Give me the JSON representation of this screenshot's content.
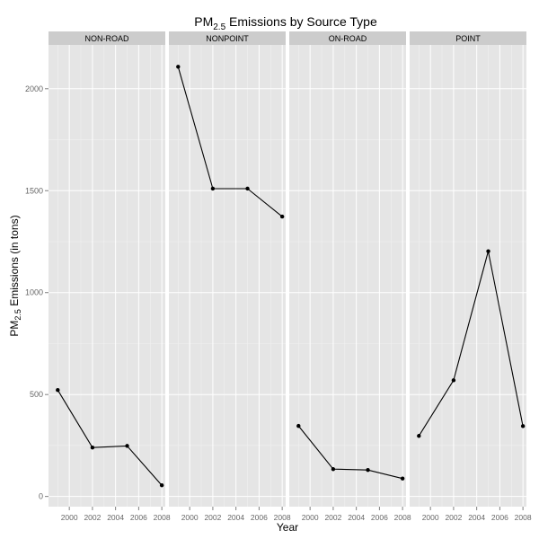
{
  "chart_data": {
    "type": "line",
    "title_main": "PM",
    "title_sub": "2.5",
    "title_rest": " Emissions by Source Type",
    "xlabel": "Year",
    "ylabel_main": "PM",
    "ylabel_sub": "2.5",
    "ylabel_rest": " Emissions (in tons)",
    "x_ticks": [
      2000,
      2002,
      2004,
      2006,
      2008
    ],
    "y_ticks": [
      0,
      500,
      1000,
      1500,
      2000
    ],
    "xlim": [
      1998.2,
      2008.3
    ],
    "ylim": [
      -50,
      2215
    ],
    "grid": true,
    "facets": [
      {
        "name": "NON-ROAD",
        "x": [
          1999,
          2002,
          2005,
          2008
        ],
        "y": [
          522,
          240,
          248,
          55
        ]
      },
      {
        "name": "NONPOINT",
        "x": [
          1999,
          2002,
          2005,
          2008
        ],
        "y": [
          2108,
          1510,
          1510,
          1373
        ]
      },
      {
        "name": "ON-ROAD",
        "x": [
          1999,
          2002,
          2005,
          2008
        ],
        "y": [
          346,
          134,
          130,
          88
        ]
      },
      {
        "name": "POINT",
        "x": [
          1999,
          2002,
          2005,
          2008
        ],
        "y": [
          297,
          570,
          1203,
          345
        ]
      }
    ],
    "colors": {
      "panel_bg": "#e5e5e5",
      "strip_bg": "#cccccc",
      "grid_major": "#ffffff",
      "grid_minor": "#f2f2f2",
      "line": "#000000",
      "tick_text": "#666666"
    }
  }
}
